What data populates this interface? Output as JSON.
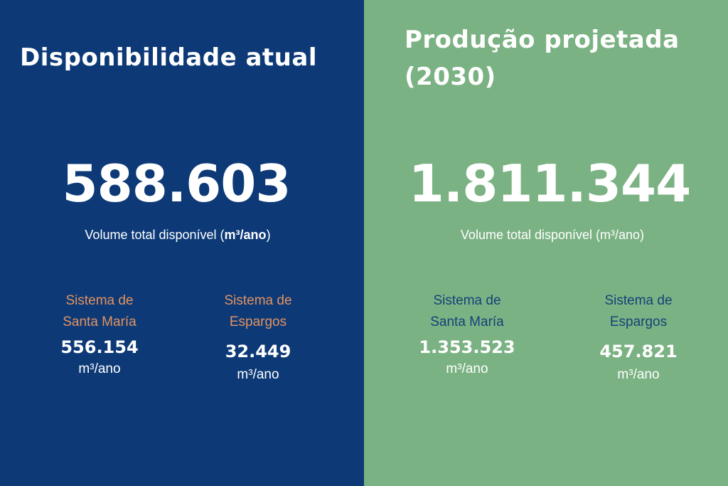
{
  "colors": {
    "left_background": "#0d3a77",
    "right_background": "#7bb283",
    "left_label": "#e2925f",
    "right_label": "#164179",
    "text": "#ffffff"
  },
  "left": {
    "title": "Disponibilidade atual",
    "total_value": "588.603",
    "total_caption_prefix": "Volume total disponível (",
    "total_caption_unit": "m³/ano",
    "total_caption_suffix": ")",
    "systems": [
      {
        "label_line1": "Sistema de",
        "label_line2": "Santa María",
        "value": "556.154",
        "unit": "m³/ano"
      },
      {
        "label_line1": "Sistema de",
        "label_line2": "Espargos",
        "value": "32.449",
        "unit": "m³/ano"
      }
    ]
  },
  "right": {
    "title_line1": "Produção projetada",
    "title_line2": "(2030)",
    "total_value": "1.811.344",
    "total_caption": "Volume total disponível (m³/ano)",
    "systems": [
      {
        "label_line1": "Sistema de",
        "label_line2": "Santa María",
        "value": "1.353.523",
        "unit": "m³/ano"
      },
      {
        "label_line1": "Sistema de",
        "label_line2": "Espargos",
        "value": "457.821",
        "unit": "m³/ano"
      }
    ]
  }
}
